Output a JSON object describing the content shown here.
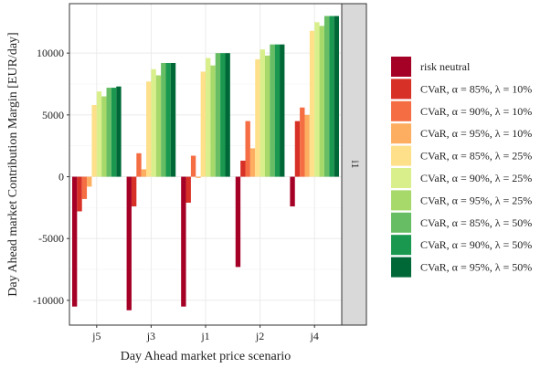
{
  "chart_data": {
    "type": "bar",
    "title": "",
    "xlabel": "Day Ahead market price scenario",
    "ylabel": "Day Ahead market Contribution Margin [EUR/day]",
    "facet_label": "i1",
    "ylim": [
      -12000,
      14000
    ],
    "yticks": [
      -10000,
      -5000,
      0,
      5000,
      10000
    ],
    "ytick_labels": [
      "-10000",
      "-5000",
      "0",
      "5000",
      "10000"
    ],
    "grid": true,
    "legend_position": "right",
    "categories": [
      "j5",
      "j3",
      "j1",
      "j2",
      "j4"
    ],
    "series": [
      {
        "name": "risk neutral",
        "color": "#a50026",
        "values": [
          -10500,
          -10800,
          -10500,
          -7300,
          -2400
        ]
      },
      {
        "name": "CVaR, α = 85%, λ = 10%",
        "color": "#d73027",
        "values": [
          -2800,
          -2400,
          -2100,
          1300,
          4500
        ]
      },
      {
        "name": "CVaR, α = 90%, λ = 10%",
        "color": "#f46d43",
        "values": [
          -1800,
          1900,
          1700,
          4500,
          5600
        ]
      },
      {
        "name": "CVaR, α = 95%, λ = 10%",
        "color": "#fdae61",
        "values": [
          -800,
          600,
          -100,
          2300,
          5000
        ]
      },
      {
        "name": "CVaR, α = 85%, λ = 25%",
        "color": "#fee08b",
        "values": [
          5800,
          7700,
          8500,
          9500,
          11800
        ]
      },
      {
        "name": "CVaR, α = 90%, λ = 25%",
        "color": "#d9ef8b",
        "values": [
          6900,
          8700,
          9600,
          10300,
          12500
        ]
      },
      {
        "name": "CVaR, α = 95%, λ = 25%",
        "color": "#a6d96a",
        "values": [
          6500,
          8200,
          9000,
          9800,
          12200
        ]
      },
      {
        "name": "CVaR, α = 85%, λ = 50%",
        "color": "#66bd63",
        "values": [
          7200,
          9200,
          10000,
          10700,
          13000
        ]
      },
      {
        "name": "CVaR, α = 90%, λ = 50%",
        "color": "#1a9850",
        "values": [
          7200,
          9200,
          10000,
          10700,
          13000
        ]
      },
      {
        "name": "CVaR, α = 95%, λ = 50%",
        "color": "#006837",
        "values": [
          7300,
          9200,
          10000,
          10700,
          13000
        ]
      }
    ]
  }
}
